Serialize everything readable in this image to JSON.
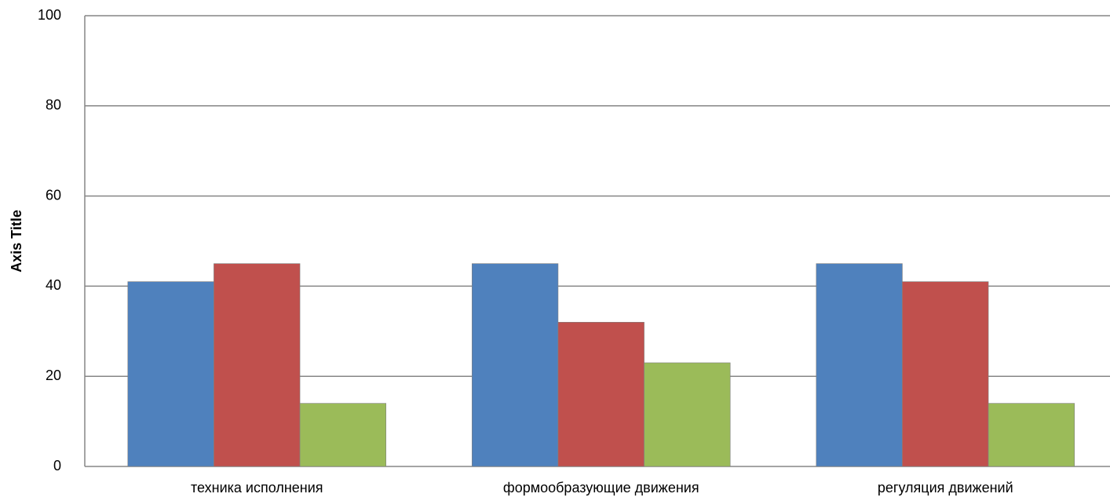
{
  "chart_data": {
    "type": "bar",
    "y_axis_title": "Axis Title",
    "categories": [
      "техника исполнения",
      "формообразующие движения",
      "регуляция движений"
    ],
    "series": [
      {
        "color": "#4f81bd",
        "values": [
          41,
          45,
          45
        ]
      },
      {
        "color": "#c0504d",
        "values": [
          45,
          32,
          41
        ]
      },
      {
        "color": "#9bbb59",
        "values": [
          14,
          23,
          14
        ]
      }
    ],
    "ylim": [
      0,
      100
    ],
    "yticks": [
      0,
      20,
      40,
      60,
      80,
      100
    ],
    "grid": true
  }
}
